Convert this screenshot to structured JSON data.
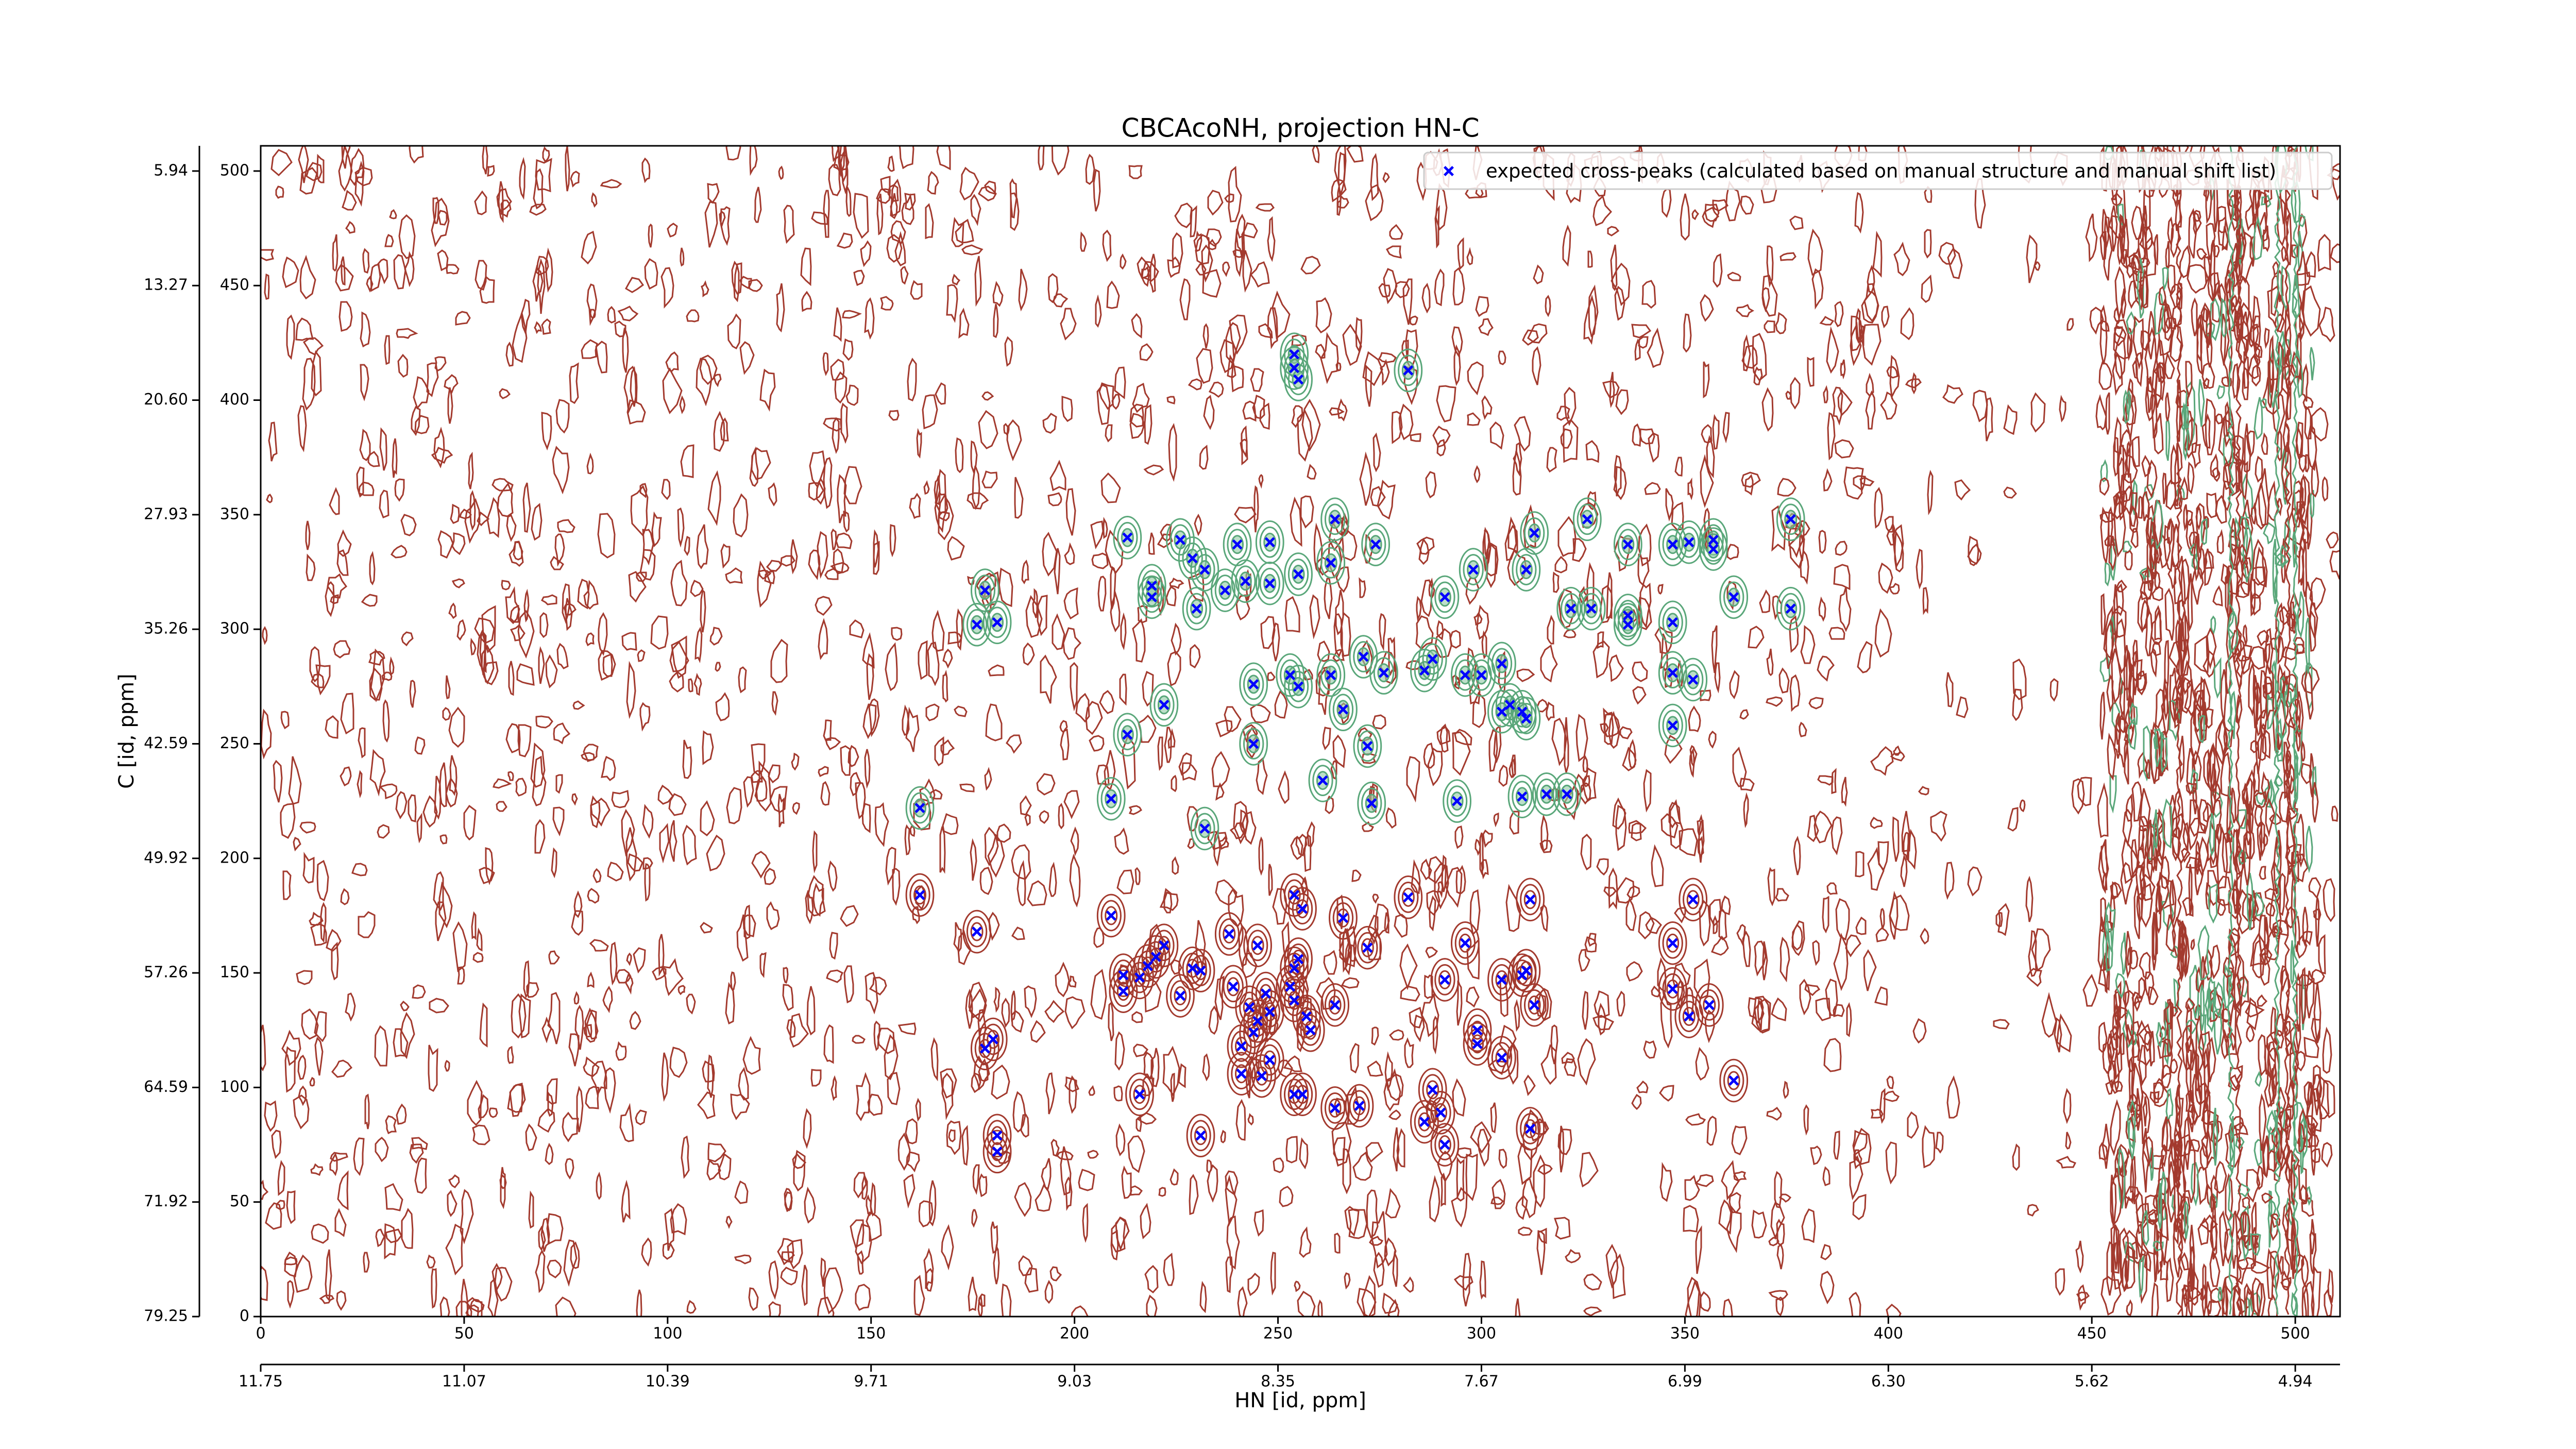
{
  "chart_data": {
    "type": "scatter",
    "title": "CBCAcoNH, projection HN-C",
    "x_label": "HN [id, ppm]",
    "y_label": "C [id, ppm]",
    "xlim": [
      0,
      511
    ],
    "ylim": [
      0,
      511
    ],
    "xticks": [
      0,
      50,
      100,
      150,
      200,
      250,
      300,
      350,
      400,
      450,
      500
    ],
    "yticks": [
      0,
      50,
      100,
      150,
      200,
      250,
      300,
      350,
      400,
      450,
      500
    ],
    "x2ticks": [
      {
        "value": 0,
        "label": "11.75"
      },
      {
        "value": 50,
        "label": "11.07"
      },
      {
        "value": 100,
        "label": "10.39"
      },
      {
        "value": 150,
        "label": "9.71"
      },
      {
        "value": 200,
        "label": "9.03"
      },
      {
        "value": 250,
        "label": "8.35"
      },
      {
        "value": 300,
        "label": "7.67"
      },
      {
        "value": 350,
        "label": "6.99"
      },
      {
        "value": 400,
        "label": "6.30"
      },
      {
        "value": 450,
        "label": "5.62"
      },
      {
        "value": 500,
        "label": "4.94"
      }
    ],
    "y2ticks": [
      {
        "value": 0,
        "label": "79.25"
      },
      {
        "value": 50,
        "label": "71.92"
      },
      {
        "value": 100,
        "label": "64.59"
      },
      {
        "value": 150,
        "label": "57.26"
      },
      {
        "value": 200,
        "label": "49.92"
      },
      {
        "value": 250,
        "label": "42.59"
      },
      {
        "value": 300,
        "label": "35.26"
      },
      {
        "value": 350,
        "label": "27.93"
      },
      {
        "value": 400,
        "label": "20.60"
      },
      {
        "value": 450,
        "label": "13.27"
      },
      {
        "value": 500,
        "label": "5.94"
      }
    ],
    "legend": "upper right",
    "series": [
      {
        "name": "expected cross-peaks (calculated based on manual structure and manual shift list)",
        "color": "#0000ff",
        "x": [
          254,
          254,
          255,
          282,
          213,
          226,
          229,
          232,
          240,
          248,
          264,
          263,
          274,
          298,
          313,
          311,
          326,
          336,
          347,
          351,
          357,
          357,
          376,
          219,
          219,
          230,
          237,
          242,
          248,
          255,
          291,
          178,
          176,
          181,
          322,
          327,
          336,
          336,
          347,
          362,
          376,
          244,
          253,
          255,
          263,
          271,
          276,
          286,
          288,
          296,
          300,
          305,
          307,
          310,
          311,
          305,
          266,
          222,
          347,
          352,
          347,
          213,
          272,
          244,
          162,
          209,
          232,
          261,
          273,
          294,
          310,
          316,
          321,
          162,
          209,
          282,
          312,
          352,
          176,
          296,
          347,
          222,
          220,
          218,
          212,
          216,
          212,
          226,
          229,
          231,
          238,
          245,
          255,
          254,
          253,
          247,
          239,
          243,
          248,
          254,
          254,
          256,
          266,
          272,
          264,
          257,
          291,
          305,
          310,
          311,
          313,
          347,
          351,
          356,
          362,
          180,
          178,
          245,
          244,
          241,
          248,
          258,
          299,
          299,
          305,
          246,
          241,
          254,
          256,
          270,
          216,
          264,
          290,
          288,
          286,
          291,
          312,
          231,
          181,
          181
        ],
        "values": [
          420,
          414,
          409,
          413,
          340,
          339,
          331,
          326,
          337,
          338,
          348,
          329,
          337,
          326,
          342,
          326,
          348,
          337,
          337,
          338,
          339,
          335,
          348,
          319,
          314,
          309,
          317,
          321,
          320,
          324,
          314,
          317,
          302,
          303,
          309,
          309,
          306,
          302,
          303,
          314,
          309,
          276,
          280,
          275,
          280,
          288,
          281,
          282,
          287,
          280,
          280,
          285,
          267,
          264,
          261,
          264,
          265,
          267,
          281,
          278,
          258,
          254,
          249,
          250,
          222,
          226,
          213,
          234,
          224,
          225,
          227,
          228,
          228,
          184,
          175,
          183,
          182,
          182,
          168,
          163,
          163,
          162,
          157,
          153,
          149,
          148,
          142,
          140,
          152,
          151,
          167,
          162,
          156,
          152,
          144,
          141,
          144,
          135,
          133,
          138,
          184,
          178,
          174,
          161,
          136,
          131,
          147,
          147,
          149,
          151,
          136,
          143,
          131,
          136,
          103,
          121,
          117,
          129,
          124,
          118,
          112,
          125,
          125,
          119,
          113,
          105,
          106,
          97,
          97,
          92,
          97,
          91,
          89,
          99,
          85,
          75,
          82,
          79,
          79,
          72
        ]
      }
    ]
  }
}
